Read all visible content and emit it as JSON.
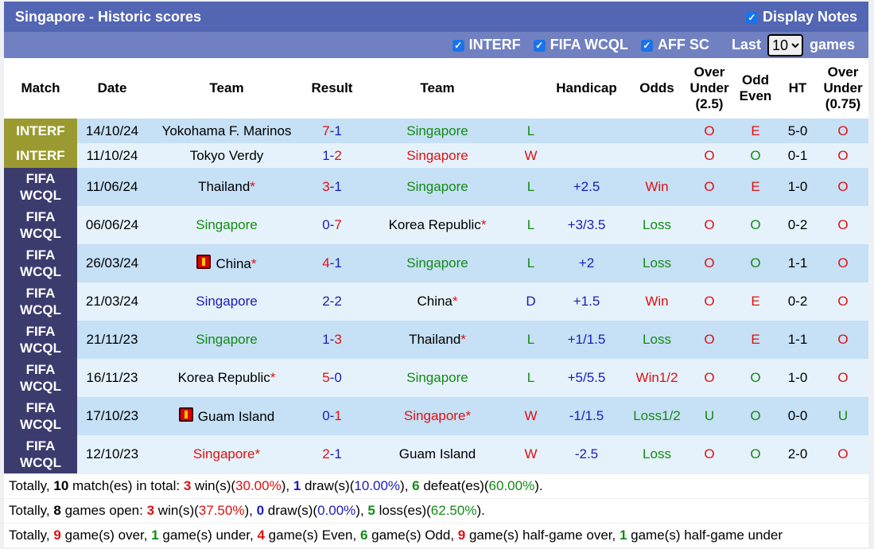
{
  "header": {
    "title": "Singapore - Historic scores",
    "display_notes": "Display Notes"
  },
  "filters": {
    "items": [
      "INTERF",
      "FIFA WCQL",
      "AFF SC"
    ],
    "last_label": "Last",
    "last_value": "10",
    "games_label": "games"
  },
  "columns": [
    "Match",
    "Date",
    "Team",
    "Result",
    "Team",
    "",
    "Handicap",
    "Odds",
    "Over Under (2.5)",
    "Odd Even",
    "HT",
    "Over Under (0.75)"
  ],
  "match_colors": {
    "INTERF": "#9a9a30",
    "FIFA WCQL": "#3b3b6e"
  },
  "rows": [
    {
      "match": "INTERF",
      "date": "14/10/24",
      "home": "Yokohama F. Marinos",
      "home_color": "black",
      "hs": "7",
      "as": "1",
      "away": "Singapore",
      "away_color": "green",
      "wl": "L",
      "hcp": "",
      "odds": "",
      "ou": "O",
      "oe": "E",
      "ht": "5-0",
      "ou2": "O"
    },
    {
      "match": "INTERF",
      "date": "11/10/24",
      "home": "Tokyo Verdy",
      "home_color": "black",
      "hs": "1",
      "as": "2",
      "away": "Singapore",
      "away_color": "red",
      "wl": "W",
      "hcp": "",
      "odds": "",
      "ou": "O",
      "oe": "O",
      "ht": "0-1",
      "ou2": "O"
    },
    {
      "match": "FIFA WCQL",
      "date": "11/06/24",
      "home": "Thailand",
      "home_star": true,
      "home_color": "black",
      "hs": "3",
      "as": "1",
      "away": "Singapore",
      "away_color": "green",
      "wl": "L",
      "hcp": "+2.5",
      "odds": "Win",
      "ou": "O",
      "oe": "E",
      "ht": "1-0",
      "ou2": "O"
    },
    {
      "match": "FIFA WCQL",
      "date": "06/06/24",
      "home": "Singapore",
      "home_color": "green",
      "hs": "0",
      "as": "7",
      "away": "Korea Republic",
      "away_star": true,
      "away_color": "black",
      "wl": "L",
      "hcp": "+3/3.5",
      "odds": "Loss",
      "ou": "O",
      "oe": "O",
      "ht": "0-2",
      "ou2": "O"
    },
    {
      "match": "FIFA WCQL",
      "date": "26/03/24",
      "home": "China",
      "home_flag": true,
      "home_star": true,
      "home_color": "black",
      "hs": "4",
      "as": "1",
      "away": "Singapore",
      "away_color": "green",
      "wl": "L",
      "hcp": "+2",
      "odds": "Loss",
      "ou": "O",
      "oe": "O",
      "ht": "1-1",
      "ou2": "O"
    },
    {
      "match": "FIFA WCQL",
      "date": "21/03/24",
      "home": "Singapore",
      "home_color": "blue",
      "hs": "2",
      "as": "2",
      "away": "China",
      "away_star": true,
      "away_color": "black",
      "wl": "D",
      "hcp": "+1.5",
      "odds": "Win",
      "ou": "O",
      "oe": "E",
      "ht": "0-2",
      "ou2": "O"
    },
    {
      "match": "FIFA WCQL",
      "date": "21/11/23",
      "home": "Singapore",
      "home_color": "green",
      "hs": "1",
      "as": "3",
      "away": "Thailand",
      "away_star": true,
      "away_color": "black",
      "wl": "L",
      "hcp": "+1/1.5",
      "odds": "Loss",
      "ou": "O",
      "oe": "E",
      "ht": "1-1",
      "ou2": "O"
    },
    {
      "match": "FIFA WCQL",
      "date": "16/11/23",
      "home": "Korea Republic",
      "home_star": true,
      "home_color": "black",
      "hs": "5",
      "as": "0",
      "away": "Singapore",
      "away_color": "green",
      "wl": "L",
      "hcp": "+5/5.5",
      "odds": "Win1/2",
      "ou": "O",
      "oe": "O",
      "ht": "1-0",
      "ou2": "O"
    },
    {
      "match": "FIFA WCQL",
      "date": "17/10/23",
      "home": "Guam Island",
      "home_flag": true,
      "home_color": "black",
      "hs": "0",
      "as": "1",
      "away": "Singapore",
      "away_star": true,
      "away_color": "red",
      "wl": "W",
      "hcp": "-1/1.5",
      "odds": "Loss1/2",
      "ou": "U",
      "oe": "O",
      "ht": "0-0",
      "ou2": "U"
    },
    {
      "match": "FIFA WCQL",
      "date": "12/10/23",
      "home": "Singapore",
      "home_star": true,
      "home_color": "red",
      "hs": "2",
      "as": "1",
      "away": "Guam Island",
      "away_color": "black",
      "wl": "W",
      "hcp": "-2.5",
      "odds": "Loss",
      "ou": "O",
      "oe": "O",
      "ht": "2-0",
      "ou2": "O"
    }
  ],
  "summary": [
    [
      [
        "Totally, ",
        "black",
        0
      ],
      [
        "10",
        "black",
        1
      ],
      [
        " match(es) in total: ",
        "black",
        0
      ],
      [
        "3",
        "red",
        1
      ],
      [
        " win(s)(",
        "black",
        0
      ],
      [
        "30.00%",
        "red",
        0
      ],
      [
        "), ",
        "black",
        0
      ],
      [
        "1",
        "blue",
        1
      ],
      [
        " draw(s)(",
        "black",
        0
      ],
      [
        "10.00%",
        "blue",
        0
      ],
      [
        "), ",
        "black",
        0
      ],
      [
        "6",
        "green",
        1
      ],
      [
        " defeat(es)(",
        "black",
        0
      ],
      [
        "60.00%",
        "green",
        0
      ],
      [
        ").",
        "black",
        0
      ]
    ],
    [
      [
        "Totally, ",
        "black",
        0
      ],
      [
        "8",
        "black",
        1
      ],
      [
        " games open: ",
        "black",
        0
      ],
      [
        "3",
        "red",
        1
      ],
      [
        " win(s)(",
        "black",
        0
      ],
      [
        "37.50%",
        "red",
        0
      ],
      [
        "), ",
        "black",
        0
      ],
      [
        "0",
        "blue",
        1
      ],
      [
        " draw(s)(",
        "black",
        0
      ],
      [
        "0.00%",
        "blue",
        0
      ],
      [
        "), ",
        "black",
        0
      ],
      [
        "5",
        "green",
        1
      ],
      [
        " loss(es)(",
        "black",
        0
      ],
      [
        "62.50%",
        "green",
        0
      ],
      [
        ").",
        "black",
        0
      ]
    ],
    [
      [
        "Totally, ",
        "black",
        0
      ],
      [
        "9",
        "red",
        1
      ],
      [
        " game(s) over, ",
        "black",
        0
      ],
      [
        "1",
        "green",
        1
      ],
      [
        " game(s) under, ",
        "black",
        0
      ],
      [
        "4",
        "red",
        1
      ],
      [
        " game(s) Even, ",
        "black",
        0
      ],
      [
        "6",
        "green",
        1
      ],
      [
        " game(s) Odd, ",
        "black",
        0
      ],
      [
        "9",
        "red",
        1
      ],
      [
        " game(s) half-game over, ",
        "black",
        0
      ],
      [
        "1",
        "green",
        1
      ],
      [
        " game(s) half-game under",
        "black",
        0
      ]
    ]
  ]
}
